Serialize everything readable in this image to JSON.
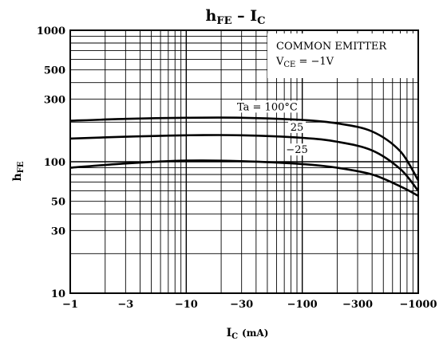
{
  "chart_data": {
    "type": "line",
    "title": {
      "main": "h",
      "main_sub": "FE",
      "sep": " – ",
      "x": "I",
      "x_sub": "C"
    },
    "xlabel": {
      "main": "I",
      "sub": "C",
      "unit": "(mA)"
    },
    "ylabel": {
      "main": "h",
      "sub": "FE"
    },
    "x_scale": "log",
    "y_scale": "log",
    "xlim": [
      1,
      1000
    ],
    "ylim": [
      10,
      1000
    ],
    "x_ticks": [
      {
        "value": 1,
        "label": "−1"
      },
      {
        "value": 3,
        "label": "−3"
      },
      {
        "value": 10,
        "label": "−10"
      },
      {
        "value": 30,
        "label": "−30"
      },
      {
        "value": 100,
        "label": "−100"
      },
      {
        "value": 300,
        "label": "−300"
      },
      {
        "value": 1000,
        "label": "−1000"
      }
    ],
    "y_ticks": [
      {
        "value": 10,
        "label": "10"
      },
      {
        "value": 30,
        "label": "30"
      },
      {
        "value": 50,
        "label": "50"
      },
      {
        "value": 100,
        "label": "100"
      },
      {
        "value": 300,
        "label": "300"
      },
      {
        "value": 500,
        "label": "500"
      },
      {
        "value": 1000,
        "label": "1000"
      }
    ],
    "grid": true,
    "annotation": {
      "line1": "COMMON EMITTER",
      "line2_main": "V",
      "line2_sub": "CE",
      "line2_rest": " = −1V",
      "placement": "top-right"
    },
    "series": [
      {
        "name": "Ta = 100°C",
        "x": [
          1,
          3,
          10,
          30,
          100,
          200,
          400,
          700,
          1000
        ],
        "y": [
          205,
          212,
          216,
          216,
          208,
          196,
          170,
          120,
          72
        ]
      },
      {
        "name": "25",
        "x": [
          1,
          3,
          10,
          30,
          100,
          200,
          400,
          700,
          1000
        ],
        "y": [
          150,
          155,
          159,
          159,
          152,
          142,
          122,
          88,
          60
        ]
      },
      {
        "name": "−25",
        "x": [
          1,
          3,
          10,
          30,
          100,
          200,
          400,
          700,
          1000
        ],
        "y": [
          90,
          97,
          102,
          101,
          96,
          90,
          80,
          65,
          55
        ]
      }
    ]
  }
}
